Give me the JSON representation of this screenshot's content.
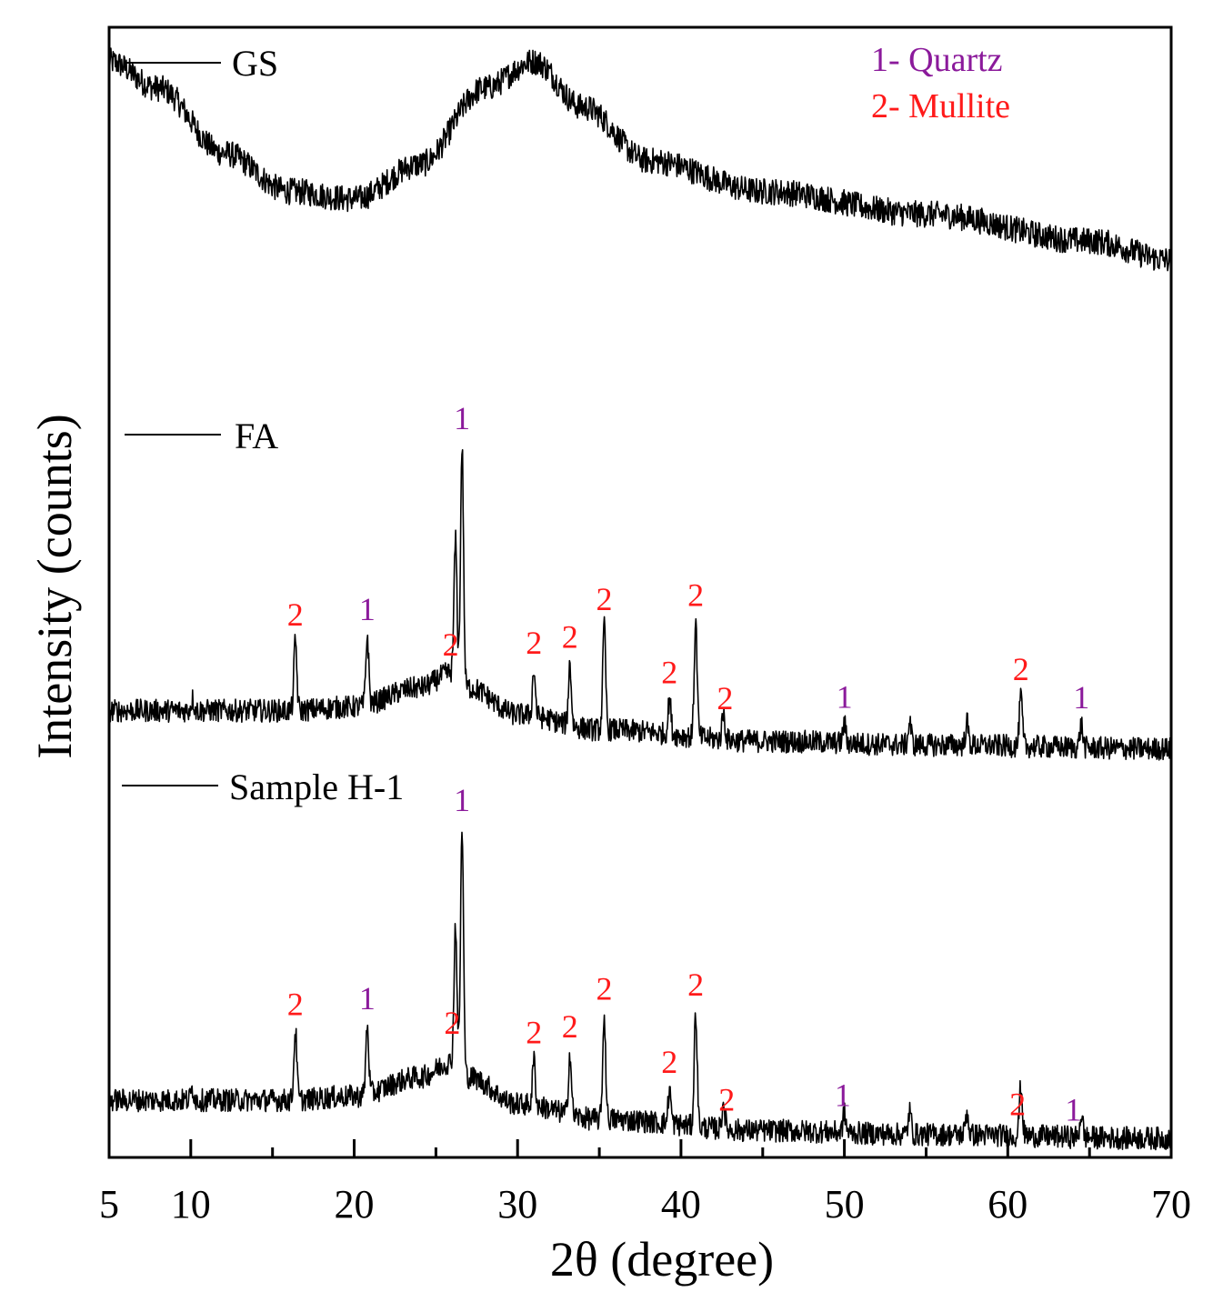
{
  "colors": {
    "quartz": "#8B1A9B",
    "mullite": "#FF1A1A",
    "trace": "#000000"
  },
  "chart_data": {
    "type": "line",
    "title": "",
    "xlabel": "2θ (degree)",
    "ylabel": "Intensity (counts)",
    "xlim": [
      5,
      70
    ],
    "x_ticks": [
      "5",
      "10",
      "20",
      "30",
      "40",
      "50",
      "60",
      "70"
    ],
    "y_ticks": [],
    "grid": false,
    "phase_key": [
      {
        "id": "1",
        "text": "1- Quartz",
        "color_key": "quartz"
      },
      {
        "id": "2",
        "text": "2- Mullite",
        "color_key": "mullite"
      }
    ],
    "series": [
      {
        "name": "GS",
        "offset": 2.1,
        "baseline_points": [
          [
            5,
            0.62
          ],
          [
            8,
            0.55
          ],
          [
            12,
            0.38
          ],
          [
            16,
            0.28
          ],
          [
            20,
            0.26
          ],
          [
            24,
            0.35
          ],
          [
            28,
            0.55
          ],
          [
            31,
            0.62
          ],
          [
            34,
            0.5
          ],
          [
            38,
            0.36
          ],
          [
            45,
            0.28
          ],
          [
            55,
            0.22
          ],
          [
            65,
            0.15
          ],
          [
            70,
            0.1
          ]
        ],
        "noise": 0.035,
        "peaks": [],
        "annotations": []
      },
      {
        "name": "FA",
        "offset": 1.02,
        "baseline_points": [
          [
            5,
            0.0
          ],
          [
            10,
            0.0
          ],
          [
            16,
            0.0
          ],
          [
            20,
            0.01
          ],
          [
            24,
            0.06
          ],
          [
            26,
            0.1
          ],
          [
            27,
            0.06
          ],
          [
            30,
            -0.01
          ],
          [
            35,
            -0.05
          ],
          [
            45,
            -0.08
          ],
          [
            55,
            -0.09
          ],
          [
            70,
            -0.1
          ]
        ],
        "noise": 0.03,
        "peaks": [
          [
            10.1,
            0.03
          ],
          [
            16.4,
            0.18
          ],
          [
            20.8,
            0.18
          ],
          [
            26.2,
            0.35
          ],
          [
            26.6,
            0.62
          ],
          [
            31.0,
            0.12
          ],
          [
            33.2,
            0.16
          ],
          [
            35.3,
            0.27
          ],
          [
            39.3,
            0.09
          ],
          [
            40.9,
            0.3
          ],
          [
            42.6,
            0.07
          ],
          [
            50.0,
            0.05
          ],
          [
            54.0,
            0.06
          ],
          [
            57.5,
            0.06
          ],
          [
            60.8,
            0.13
          ],
          [
            64.5,
            0.06
          ]
        ],
        "annotations": [
          {
            "label": "2",
            "x": 16.4,
            "phase": "2"
          },
          {
            "label": "1",
            "x": 20.8,
            "phase": "1"
          },
          {
            "label": "2",
            "x": 25.9,
            "phase": "2"
          },
          {
            "label": "1",
            "x": 26.6,
            "phase": "1"
          },
          {
            "label": "2",
            "x": 31.0,
            "phase": "2"
          },
          {
            "label": "2",
            "x": 33.2,
            "phase": "2"
          },
          {
            "label": "2",
            "x": 35.3,
            "phase": "2"
          },
          {
            "label": "2",
            "x": 39.3,
            "phase": "2"
          },
          {
            "label": "2",
            "x": 40.9,
            "phase": "2"
          },
          {
            "label": "2",
            "x": 42.7,
            "phase": "2"
          },
          {
            "label": "1",
            "x": 50.0,
            "phase": "1"
          },
          {
            "label": "2",
            "x": 60.8,
            "phase": "2"
          },
          {
            "label": "1",
            "x": 64.5,
            "phase": "1"
          }
        ]
      },
      {
        "name": "Sample H-1",
        "offset": 0.0,
        "baseline_points": [
          [
            5,
            0.0
          ],
          [
            10,
            0.0
          ],
          [
            16,
            0.0
          ],
          [
            20,
            0.01
          ],
          [
            24,
            0.06
          ],
          [
            26,
            0.1
          ],
          [
            27,
            0.06
          ],
          [
            30,
            -0.01
          ],
          [
            35,
            -0.05
          ],
          [
            45,
            -0.08
          ],
          [
            55,
            -0.09
          ],
          [
            70,
            -0.1
          ]
        ],
        "noise": 0.03,
        "peaks": [
          [
            10.1,
            0.03
          ],
          [
            16.4,
            0.18
          ],
          [
            20.8,
            0.18
          ],
          [
            26.2,
            0.36
          ],
          [
            26.6,
            0.64
          ],
          [
            31.0,
            0.12
          ],
          [
            33.2,
            0.16
          ],
          [
            35.3,
            0.27
          ],
          [
            39.3,
            0.09
          ],
          [
            40.9,
            0.3
          ],
          [
            42.6,
            0.07
          ],
          [
            50.0,
            0.05
          ],
          [
            54.0,
            0.06
          ],
          [
            57.5,
            0.06
          ],
          [
            60.8,
            0.13
          ],
          [
            64.5,
            0.06
          ]
        ],
        "annotations": [
          {
            "label": "2",
            "x": 16.4,
            "phase": "2"
          },
          {
            "label": "1",
            "x": 20.8,
            "phase": "1"
          },
          {
            "label": "2",
            "x": 26.0,
            "phase": "2"
          },
          {
            "label": "1",
            "x": 26.6,
            "phase": "1"
          },
          {
            "label": "2",
            "x": 31.0,
            "phase": "2"
          },
          {
            "label": "2",
            "x": 33.2,
            "phase": "2"
          },
          {
            "label": "2",
            "x": 35.3,
            "phase": "2"
          },
          {
            "label": "2",
            "x": 39.3,
            "phase": "2"
          },
          {
            "label": "2",
            "x": 40.9,
            "phase": "2"
          },
          {
            "label": "2",
            "x": 42.8,
            "phase": "2"
          },
          {
            "label": "1",
            "x": 49.9,
            "phase": "1"
          },
          {
            "label": "2",
            "x": 60.6,
            "phase": "2"
          },
          {
            "label": "1",
            "x": 64.0,
            "phase": "1"
          }
        ]
      }
    ]
  }
}
